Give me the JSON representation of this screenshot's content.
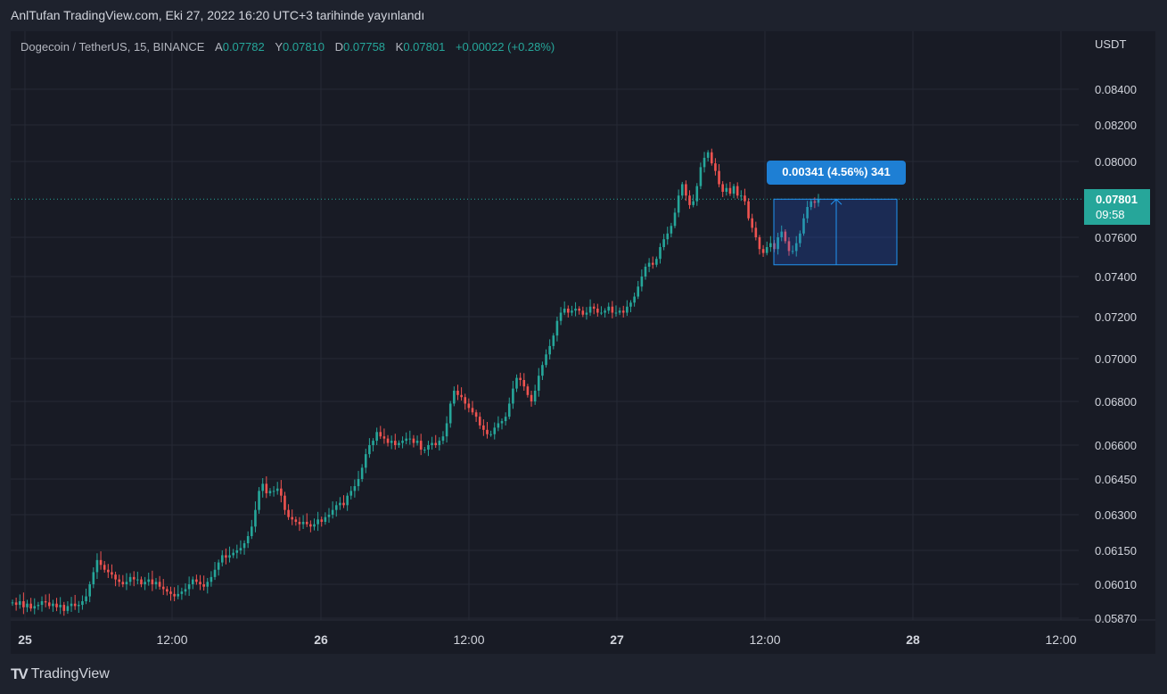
{
  "header": {
    "published": "AnlTufan TradingView.com, Eki 27, 2022 16:20 UTC+3 tarihinde yayınlandı"
  },
  "symbol": {
    "name": "Dogecoin / TetherUS, 15, BINANCE",
    "open_label": "A",
    "open": "0.07782",
    "high_label": "Y",
    "high": "0.07810",
    "low_label": "D",
    "low": "0.07758",
    "close_label": "K",
    "close": "0.07801",
    "change": "+0.00022 (+0.28%)"
  },
  "axis": {
    "unit": "USDT"
  },
  "last_price": {
    "value": "0.07801",
    "countdown": "09:58"
  },
  "measure": {
    "label": "0.00341 (4.56%) 341"
  },
  "footer": {
    "brand": "TradingView",
    "logo": "TV"
  },
  "colors": {
    "up": "#26a69a",
    "down": "#ef5350",
    "measure": "#1e7fd4",
    "background": "#181b25"
  },
  "chart_data": {
    "type": "candlestick",
    "timeframe": "15",
    "y_ticks": [
      "0.08400",
      "0.08200",
      "0.08000",
      "0.07600",
      "0.07400",
      "0.07200",
      "0.07000",
      "0.06800",
      "0.06600",
      "0.06450",
      "0.06300",
      "0.06150",
      "0.06010",
      "0.05870"
    ],
    "x_ticks": [
      "25",
      "12:00",
      "26",
      "12:00",
      "27",
      "12:00",
      "28",
      "12:00"
    ],
    "ylim": [
      0.0582,
      0.0865
    ],
    "last_price": 0.07801,
    "measure": {
      "from": 0.0746,
      "to": 0.07801
    },
    "close_series": [
      0.05935,
      0.05925,
      0.0594,
      0.05915,
      0.0593,
      0.0591,
      0.0592,
      0.05925,
      0.0594,
      0.05935,
      0.0592,
      0.0593,
      0.05915,
      0.05925,
      0.059,
      0.0592,
      0.0593,
      0.0592,
      0.05925,
      0.0594,
      0.0596,
      0.0601,
      0.0606,
      0.0611,
      0.0609,
      0.0607,
      0.0606,
      0.0605,
      0.0603,
      0.0602,
      0.0601,
      0.0602,
      0.0604,
      0.0603,
      0.0603,
      0.0601,
      0.0602,
      0.0603,
      0.0601,
      0.0602,
      0.06,
      0.0599,
      0.0598,
      0.0597,
      0.0596,
      0.0597,
      0.0598,
      0.0599,
      0.0601,
      0.0603,
      0.0602,
      0.0601,
      0.06,
      0.0602,
      0.0604,
      0.0607,
      0.061,
      0.0613,
      0.0612,
      0.0613,
      0.0614,
      0.0615,
      0.0616,
      0.0618,
      0.0621,
      0.0625,
      0.0632,
      0.064,
      0.0643,
      0.0639,
      0.064,
      0.064,
      0.0641,
      0.0638,
      0.0632,
      0.0629,
      0.0628,
      0.0627,
      0.0626,
      0.0627,
      0.0626,
      0.0625,
      0.0626,
      0.0628,
      0.0627,
      0.0629,
      0.063,
      0.0632,
      0.0634,
      0.0635,
      0.0634,
      0.0638,
      0.064,
      0.0642,
      0.0645,
      0.065,
      0.0656,
      0.066,
      0.0662,
      0.0666,
      0.0664,
      0.0663,
      0.0661,
      0.0662,
      0.066,
      0.0661,
      0.0662,
      0.0663,
      0.0663,
      0.0661,
      0.0662,
      0.0658,
      0.0658,
      0.066,
      0.0661,
      0.066,
      0.0662,
      0.0664,
      0.067,
      0.0679,
      0.0685,
      0.0683,
      0.0682,
      0.0679,
      0.0677,
      0.0675,
      0.0673,
      0.0669,
      0.0667,
      0.0665,
      0.0665,
      0.0668,
      0.067,
      0.0671,
      0.0673,
      0.0679,
      0.0686,
      0.0691,
      0.069,
      0.0687,
      0.0683,
      0.068,
      0.0685,
      0.0692,
      0.0697,
      0.0702,
      0.0706,
      0.0711,
      0.0718,
      0.0722,
      0.0724,
      0.0722,
      0.0723,
      0.0724,
      0.0723,
      0.0721,
      0.0722,
      0.0725,
      0.0724,
      0.0722,
      0.0722,
      0.0723,
      0.0725,
      0.0722,
      0.0722,
      0.0723,
      0.0722,
      0.0725,
      0.0727,
      0.073,
      0.0735,
      0.074,
      0.0745,
      0.0747,
      0.0746,
      0.0749,
      0.0755,
      0.0759,
      0.0762,
      0.0766,
      0.0773,
      0.0782,
      0.0788,
      0.0782,
      0.0777,
      0.0779,
      0.0787,
      0.0797,
      0.0802,
      0.0805,
      0.0799,
      0.0795,
      0.0788,
      0.0784,
      0.0786,
      0.0783,
      0.0787,
      0.0782,
      0.0782,
      0.0779,
      0.077,
      0.0765,
      0.076,
      0.0754,
      0.0752,
      0.0755,
      0.0757,
      0.0754,
      0.076,
      0.0763,
      0.0758,
      0.0753,
      0.0753,
      0.0757,
      0.0762,
      0.077,
      0.0776,
      0.0779,
      0.07782,
      0.07801
    ]
  }
}
